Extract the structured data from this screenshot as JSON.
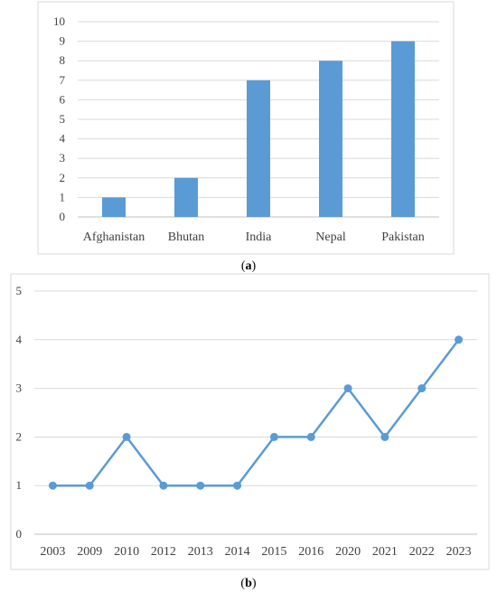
{
  "captions": {
    "a": "a",
    "b": "b"
  },
  "chart_data": [
    {
      "type": "bar",
      "categories": [
        "Afghanistan",
        "Bhutan",
        "India",
        "Nepal",
        "Pakistan"
      ],
      "values": [
        1,
        2,
        7,
        8,
        9
      ],
      "ylim": [
        0,
        10
      ],
      "yticks": [
        0,
        1,
        2,
        3,
        4,
        5,
        6,
        7,
        8,
        9,
        10
      ],
      "grid": true,
      "color": "#5b9bd5"
    },
    {
      "type": "line",
      "categories": [
        "2003",
        "2009",
        "2010",
        "2012",
        "2013",
        "2014",
        "2015",
        "2016",
        "2020",
        "2021",
        "2022",
        "2023"
      ],
      "values": [
        1,
        1,
        2,
        1,
        1,
        1,
        2,
        2,
        3,
        2,
        3,
        4
      ],
      "ylim": [
        0,
        5
      ],
      "yticks": [
        0,
        1,
        2,
        3,
        4,
        5
      ],
      "grid": true,
      "color": "#5b9bd5"
    }
  ]
}
